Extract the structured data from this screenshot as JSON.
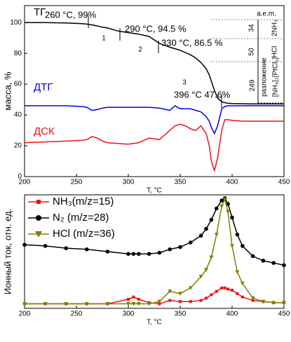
{
  "chart_data": [
    {
      "type": "line",
      "ylabel": "масса, %",
      "xlabel": "T, °C",
      "x": [
        200,
        220,
        240,
        255,
        260,
        265,
        270,
        275,
        280,
        290,
        300,
        310,
        320,
        330,
        340,
        345,
        350,
        355,
        360,
        365,
        370,
        375,
        378,
        380,
        383,
        386,
        390,
        393,
        396,
        400,
        410,
        420,
        430,
        440,
        450
      ],
      "series": [
        {
          "name": "ТГ",
          "color": "#000000",
          "values": [
            100,
            100,
            99.7,
            99.3,
            99,
            98.5,
            97.8,
            97,
            96.5,
            94.5,
            93.5,
            92.5,
            91,
            86.5,
            84,
            83,
            82,
            80.5,
            79,
            77,
            74,
            70,
            66,
            62,
            56,
            51,
            48.5,
            48,
            47.6,
            47.4,
            47.3,
            47.2,
            47.2,
            47.2,
            47.2
          ]
        },
        {
          "name": "ДТГ",
          "color": "#0000ee",
          "values": [
            46,
            46,
            46,
            45.5,
            45,
            43,
            43.5,
            44.5,
            45,
            45,
            45,
            45,
            45,
            44.5,
            43,
            46,
            44,
            44,
            44,
            43,
            42,
            39,
            36,
            32,
            28,
            33,
            44,
            45.5,
            46,
            46,
            46,
            46,
            46,
            46,
            46
          ]
        },
        {
          "name": "ДСК",
          "color": "#ee1111",
          "values": [
            22,
            22.5,
            23,
            23.5,
            24,
            26,
            25,
            23,
            22,
            21.5,
            21,
            22,
            25,
            24,
            30,
            33,
            34,
            33,
            31,
            30,
            33,
            28,
            20,
            10,
            4,
            12,
            30,
            37,
            37,
            36.5,
            36,
            36,
            36,
            36,
            36
          ]
        }
      ],
      "annotations": [
        "260 °С, 99%",
        "290 °С, 94.5 %",
        "330 °С, 86.5 %",
        "396 °С 47.6%",
        "1",
        "2",
        "3",
        "a.e.m.",
        "34",
        "2NH₃",
        "50",
        "HCl",
        "249",
        "разложение",
        "[NH₄]₂[PtCl₆]"
      ],
      "xlim": [
        200,
        450
      ],
      "xticks": [
        200,
        250,
        300,
        350,
        400,
        450
      ],
      "ylim": [
        0,
        111
      ],
      "yticks": [
        0,
        20,
        40,
        60,
        80,
        100
      ]
    },
    {
      "type": "line",
      "ylabel": "Ионный ток, отн. ед.",
      "xlabel": "T, °C",
      "x": [
        200,
        220,
        240,
        260,
        280,
        300,
        305,
        310,
        320,
        330,
        340,
        350,
        360,
        370,
        375,
        380,
        385,
        390,
        393,
        396,
        400,
        405,
        410,
        420,
        430,
        440,
        450
      ],
      "series": [
        {
          "name": "NH₃(m/z=15)",
          "color": "#ee1111",
          "marker": "square",
          "values": [
            4,
            4,
            4,
            4,
            4,
            8,
            10,
            8,
            5,
            4,
            7,
            6,
            6,
            7,
            9,
            12,
            15,
            18,
            18,
            17,
            16,
            13,
            10,
            7,
            6,
            5,
            5
          ]
        },
        {
          "name": "N₂ (m/z=28)",
          "color": "#000000",
          "marker": "circle",
          "values": [
            56,
            55,
            53,
            52,
            50,
            48,
            48,
            48,
            48,
            49,
            52,
            54,
            58,
            64,
            70,
            78,
            88,
            95,
            97,
            92,
            80,
            65,
            55,
            46,
            42,
            40,
            38
          ]
        },
        {
          "name": "HCl (m/z=36)",
          "color": "#808000",
          "marker": "triangle",
          "values": [
            4,
            4,
            4,
            4,
            4,
            4,
            4,
            4,
            4,
            6,
            15,
            13,
            18,
            28,
            34,
            45,
            65,
            90,
            96,
            85,
            55,
            32,
            22,
            9,
            6,
            5,
            5
          ]
        }
      ],
      "xlim": [
        200,
        450
      ],
      "xticks": [
        200,
        250,
        300,
        350,
        400,
        450
      ],
      "ylim": [
        0,
        100
      ]
    }
  ]
}
